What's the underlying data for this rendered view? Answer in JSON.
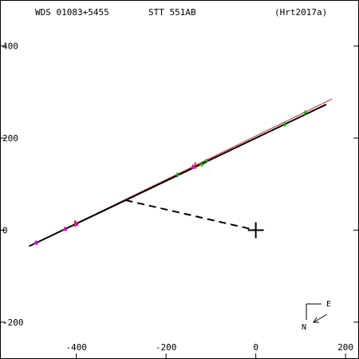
{
  "header": {
    "wds": "WDS 01083+5455",
    "name": "STT 551AB",
    "reference": "(Hrt2017a)"
  },
  "compass": {
    "east": "E",
    "north": "N"
  },
  "chart_data": {
    "type": "scatter",
    "xlim": [
      -570,
      230
    ],
    "ylim": [
      -280,
      500
    ],
    "x_reversed": false,
    "x_ticks": [
      -400,
      -200,
      0,
      200
    ],
    "x_tick_labels": [
      "-400",
      "-200",
      "0",
      "200"
    ],
    "y_ticks": [
      -200,
      0,
      200,
      400
    ],
    "y_tick_labels": [
      "-200",
      "0",
      "200",
      "400"
    ],
    "orbit_black": {
      "from": [
        -505,
        -35
      ],
      "to": [
        157,
        273
      ]
    },
    "orbit_red": {
      "from": [
        -505,
        -35
      ],
      "to": [
        170,
        285
      ]
    },
    "periastron_line": {
      "from": [
        -290,
        65
      ],
      "to": [
        0,
        0
      ]
    },
    "primary": [
      0,
      0
    ],
    "observations": {
      "magenta": [
        [
          -490,
          -27
        ],
        [
          -425,
          3
        ],
        [
          -400,
          14
        ],
        [
          -140,
          138
        ]
      ],
      "red": [
        [
          -403,
          14
        ],
        [
          -135,
          140
        ]
      ],
      "green": [
        [
          -175,
          120
        ],
        [
          -120,
          143
        ],
        [
          -110,
          150
        ],
        [
          65,
          230
        ],
        [
          110,
          255
        ]
      ]
    }
  }
}
